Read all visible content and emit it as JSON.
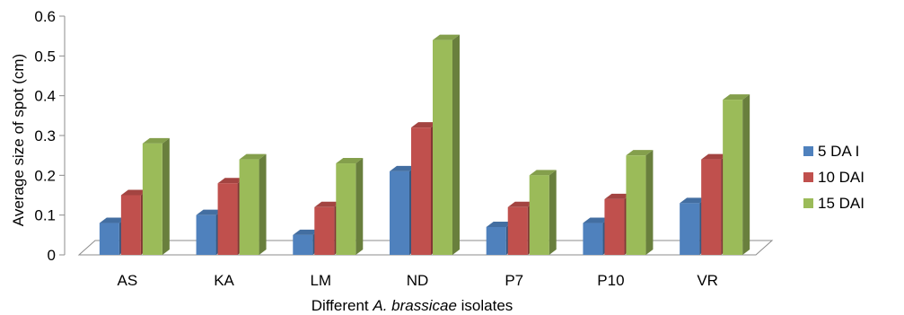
{
  "chart_data": {
    "type": "bar",
    "title": "",
    "xlabel": {
      "prefix": "Different ",
      "italic": "A. brassicae",
      "suffix": " isolates"
    },
    "ylabel": "Average size of spot (cm)",
    "categories": [
      "AS",
      "KA",
      "LM",
      "ND",
      "P7",
      "P10",
      "VR"
    ],
    "ylim": [
      0,
      0.6
    ],
    "yticks": [
      "0",
      "0.1",
      "0.2",
      "0.3",
      "0.4",
      "0.5",
      "0.6"
    ],
    "grid": false,
    "legend_position": "right",
    "style": "3d-clustered-column",
    "series": [
      {
        "name": "5 DA I",
        "values": [
          0.08,
          0.1,
          0.05,
          0.21,
          0.07,
          0.08,
          0.13
        ],
        "color": "#4F81BD"
      },
      {
        "name": "10 DAI",
        "values": [
          0.15,
          0.18,
          0.12,
          0.32,
          0.12,
          0.14,
          0.24
        ],
        "color": "#C0504D"
      },
      {
        "name": "15 DAI",
        "values": [
          0.28,
          0.24,
          0.23,
          0.54,
          0.2,
          0.25,
          0.39
        ],
        "color": "#9BBB59"
      }
    ]
  }
}
